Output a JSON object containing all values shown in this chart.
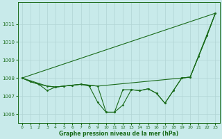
{
  "xlabel": "Graphe pression niveau de la mer (hPa)",
  "background_color": "#c8eaea",
  "grid_color": "#b0d4d4",
  "line_color": "#1a6b1a",
  "marker_color": "#1a6b1a",
  "ylim": [
    1005.5,
    1012.2
  ],
  "xlim": [
    -0.5,
    23.5
  ],
  "yticks": [
    1006,
    1007,
    1008,
    1009,
    1010,
    1011
  ],
  "xticks": [
    0,
    1,
    2,
    3,
    4,
    5,
    6,
    7,
    8,
    9,
    10,
    11,
    12,
    13,
    14,
    15,
    16,
    17,
    18,
    19,
    20,
    21,
    22,
    23
  ],
  "series_straight": [
    [
      0,
      1008.0
    ],
    [
      23,
      1011.6
    ]
  ],
  "series1": [
    [
      0,
      1008.0
    ],
    [
      1,
      1007.8
    ],
    [
      2,
      1007.65
    ],
    [
      3,
      1007.55
    ],
    [
      4,
      1007.5
    ],
    [
      5,
      1007.55
    ],
    [
      6,
      1007.6
    ],
    [
      7,
      1007.65
    ],
    [
      8,
      1007.6
    ],
    [
      9,
      1007.55
    ],
    [
      10,
      1006.1
    ],
    [
      11,
      1006.1
    ],
    [
      12,
      1006.5
    ],
    [
      13,
      1007.35
    ],
    [
      14,
      1007.3
    ],
    [
      15,
      1007.4
    ],
    [
      16,
      1007.15
    ],
    [
      17,
      1006.6
    ],
    [
      18,
      1007.3
    ],
    [
      19,
      1008.0
    ],
    [
      20,
      1008.05
    ],
    [
      21,
      1009.2
    ],
    [
      22,
      1010.35
    ],
    [
      23,
      1011.6
    ]
  ],
  "series2": [
    [
      0,
      1008.0
    ],
    [
      1,
      1007.8
    ],
    [
      2,
      1007.65
    ],
    [
      3,
      1007.3
    ],
    [
      4,
      1007.5
    ],
    [
      5,
      1007.55
    ],
    [
      6,
      1007.6
    ],
    [
      7,
      1007.65
    ],
    [
      8,
      1007.55
    ],
    [
      9,
      1006.65
    ],
    [
      10,
      1006.1
    ],
    [
      11,
      1006.1
    ],
    [
      12,
      1007.35
    ],
    [
      13,
      1007.35
    ],
    [
      14,
      1007.3
    ],
    [
      15,
      1007.4
    ],
    [
      16,
      1007.15
    ],
    [
      17,
      1006.6
    ],
    [
      18,
      1007.3
    ],
    [
      19,
      1008.0
    ],
    [
      20,
      1008.05
    ],
    [
      21,
      1009.2
    ],
    [
      22,
      1010.35
    ],
    [
      23,
      1011.6
    ]
  ],
  "series3": [
    [
      0,
      1008.0
    ],
    [
      3,
      1007.55
    ],
    [
      4,
      1007.5
    ],
    [
      5,
      1007.55
    ],
    [
      6,
      1007.6
    ],
    [
      7,
      1007.65
    ],
    [
      9,
      1007.55
    ],
    [
      19,
      1008.0
    ],
    [
      20,
      1008.05
    ],
    [
      23,
      1011.6
    ]
  ]
}
